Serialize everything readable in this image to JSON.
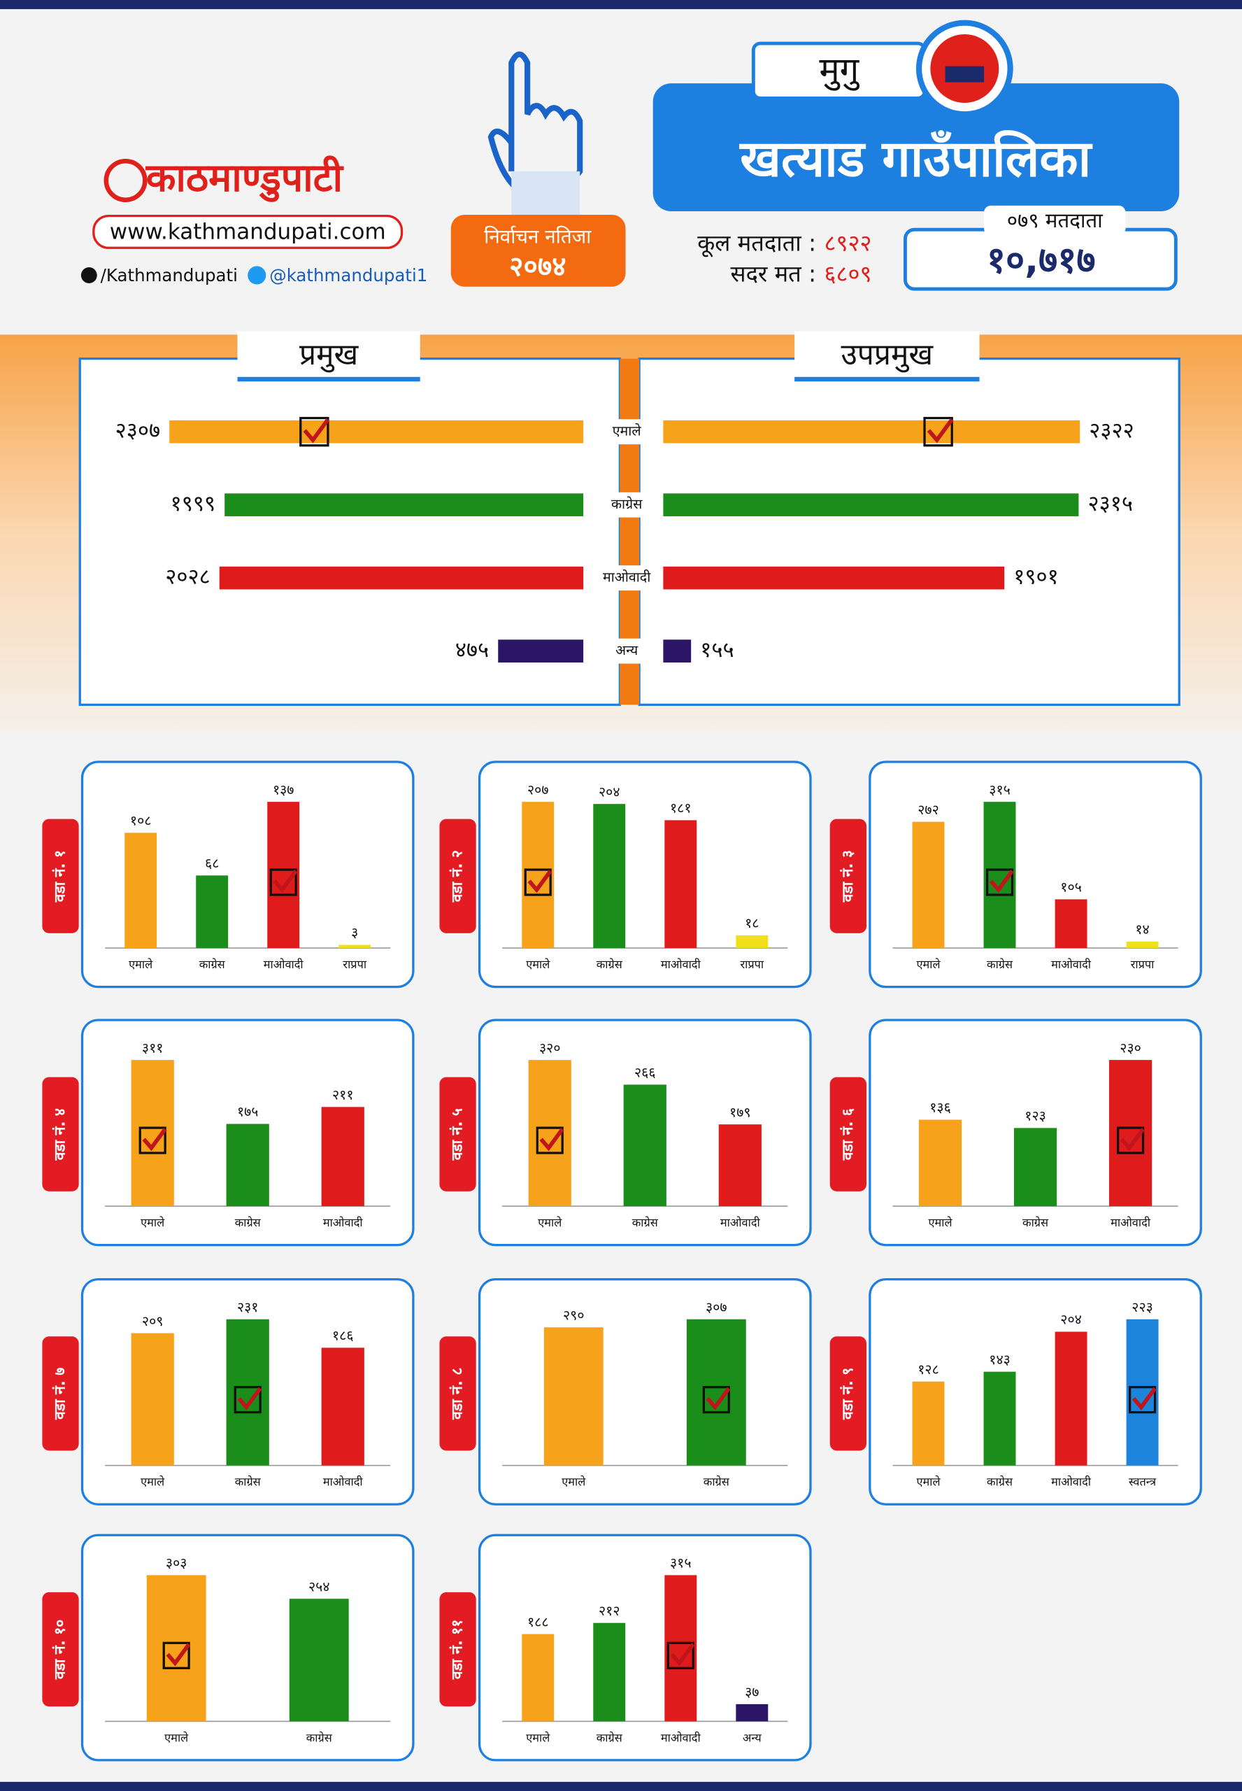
{
  "brand": {
    "name": "काठमाण्डुपाटी",
    "website": "www.kathmandupati.com",
    "facebook": "/Kathmandupati",
    "twitter": "@kathmandupati1"
  },
  "header": {
    "badge_title": "निर्वाचन नतिजा",
    "badge_year": "२०७४",
    "district": "मुगु",
    "title": "खत्याड गाउँपालिका",
    "total_voters_label": "कूल मतदाता :",
    "total_voters": "८९२२",
    "valid_votes_label": "सदर मत :",
    "valid_votes": "६८०९",
    "voters_079_label": "०७९ मतदाता",
    "voters_079": "१०,७१७"
  },
  "chart_data": [
    {
      "type": "butterfly",
      "categories": [
        "एमाले",
        "काग्रेस",
        "माओवादी",
        "अन्य"
      ],
      "colors": [
        "#f7a21b",
        "#1b8d1b",
        "#e01b1b",
        "#2c1566"
      ],
      "series": [
        {
          "name": "प्रमुख",
          "values": [
            2307,
            1999,
            2028,
            475
          ],
          "value_labels": [
            "२३०७",
            "१९९९",
            "२०२८",
            "४७५"
          ],
          "winner": 0
        },
        {
          "name": "उपप्रमुख",
          "values": [
            2322,
            2315,
            1901,
            155
          ],
          "value_labels": [
            "२३२२",
            "२३१५",
            "१९०१",
            "१५५"
          ],
          "winner": 0
        }
      ]
    },
    {
      "type": "bar",
      "title": "वडा नं. १",
      "categories": [
        "एमाले",
        "काग्रेस",
        "माओवादी",
        "राप्रपा"
      ],
      "values": [
        108,
        68,
        137,
        3
      ],
      "value_labels": [
        "१०८",
        "६८",
        "१३७",
        "३"
      ],
      "colors": [
        "#f7a21b",
        "#1b8d1b",
        "#e01b1b",
        "#f0e01a"
      ],
      "winner": 2
    },
    {
      "type": "bar",
      "title": "वडा नं. २",
      "categories": [
        "एमाले",
        "काग्रेस",
        "माओवादी",
        "राप्रपा"
      ],
      "values": [
        207,
        204,
        181,
        18
      ],
      "value_labels": [
        "२०७",
        "२०४",
        "१८१",
        "१८"
      ],
      "colors": [
        "#f7a21b",
        "#1b8d1b",
        "#e01b1b",
        "#f0e01a"
      ],
      "winner": 0
    },
    {
      "type": "bar",
      "title": "वडा नं. ३",
      "categories": [
        "एमाले",
        "काग्रेस",
        "माओवादी",
        "राप्रपा"
      ],
      "values": [
        272,
        315,
        105,
        14
      ],
      "value_labels": [
        "२७२",
        "३१५",
        "१०५",
        "१४"
      ],
      "colors": [
        "#f7a21b",
        "#1b8d1b",
        "#e01b1b",
        "#f0e01a"
      ],
      "winner": 1
    },
    {
      "type": "bar",
      "title": "वडा नं. ४",
      "categories": [
        "एमाले",
        "काग्रेस",
        "माओवादी"
      ],
      "values": [
        311,
        175,
        211
      ],
      "value_labels": [
        "३११",
        "१७५",
        "२११"
      ],
      "colors": [
        "#f7a21b",
        "#1b8d1b",
        "#e01b1b"
      ],
      "winner": 0
    },
    {
      "type": "bar",
      "title": "वडा नं. ५",
      "categories": [
        "एमाले",
        "काग्रेस",
        "माओवादी"
      ],
      "values": [
        320,
        266,
        179
      ],
      "value_labels": [
        "३२०",
        "२६६",
        "१७९"
      ],
      "colors": [
        "#f7a21b",
        "#1b8d1b",
        "#e01b1b"
      ],
      "winner": 0
    },
    {
      "type": "bar",
      "title": "वडा नं. ६",
      "categories": [
        "एमाले",
        "काग्रेस",
        "माओवादी"
      ],
      "values": [
        136,
        123,
        230
      ],
      "value_labels": [
        "१३६",
        "१२३",
        "२३०"
      ],
      "colors": [
        "#f7a21b",
        "#1b8d1b",
        "#e01b1b"
      ],
      "winner": 2
    },
    {
      "type": "bar",
      "title": "वडा नं. ७",
      "categories": [
        "एमाले",
        "काग्रेस",
        "माओवादी"
      ],
      "values": [
        209,
        231,
        186
      ],
      "value_labels": [
        "२०९",
        "२३१",
        "१८६"
      ],
      "colors": [
        "#f7a21b",
        "#1b8d1b",
        "#e01b1b"
      ],
      "winner": 1
    },
    {
      "type": "bar",
      "title": "वडा नं. ८",
      "categories": [
        "एमाले",
        "काग्रेस"
      ],
      "values": [
        290,
        307
      ],
      "value_labels": [
        "२९०",
        "३०७"
      ],
      "colors": [
        "#f7a21b",
        "#1b8d1b"
      ],
      "winner": 1
    },
    {
      "type": "bar",
      "title": "वडा नं. ९",
      "categories": [
        "एमाले",
        "काग्रेस",
        "माओवादी",
        "स्वतन्त्र"
      ],
      "values": [
        128,
        143,
        204,
        223
      ],
      "value_labels": [
        "१२८",
        "१४३",
        "२०४",
        "२२३"
      ],
      "colors": [
        "#f7a21b",
        "#1b8d1b",
        "#e01b1b",
        "#1d84dc"
      ],
      "winner": 3
    },
    {
      "type": "bar",
      "title": "वडा नं. १०",
      "categories": [
        "एमाले",
        "काग्रेस"
      ],
      "values": [
        303,
        254
      ],
      "value_labels": [
        "३०३",
        "२५४"
      ],
      "colors": [
        "#f7a21b",
        "#1b8d1b"
      ],
      "winner": 0
    },
    {
      "type": "bar",
      "title": "वडा नं. ११",
      "categories": [
        "एमाले",
        "काग्रेस",
        "माओवादी",
        "अन्य"
      ],
      "values": [
        188,
        212,
        315,
        37
      ],
      "value_labels": [
        "१८८",
        "२१२",
        "३१५",
        "३७"
      ],
      "colors": [
        "#f7a21b",
        "#1b8d1b",
        "#e01b1b",
        "#2c1566"
      ],
      "winner": 2
    }
  ]
}
